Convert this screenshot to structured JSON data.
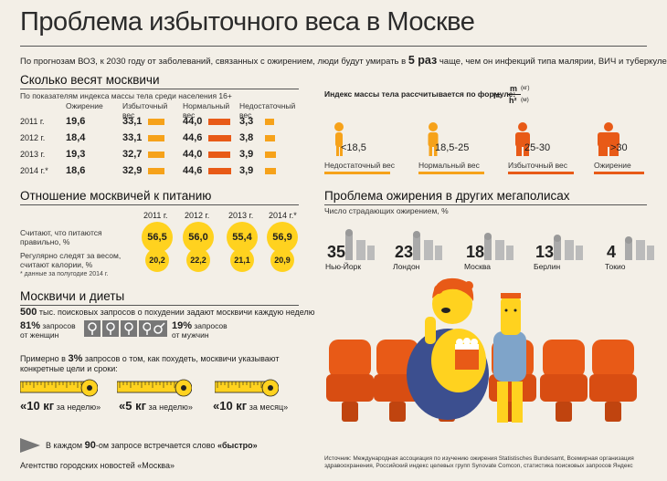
{
  "title": "Проблема избыточного веса в Москве",
  "subtitle_a": "По прогнозам ВОЗ, к 2030 году от заболеваний, связанных с ожирением, люди будут умирать в ",
  "subtitle_b": "5 раз",
  "subtitle_c": " чаще, чем он инфекций типа малярии, ВИЧ и туберкулеза",
  "weigh": {
    "heading": "Сколько весят москвичи",
    "sub": "По показателям индекса массы тела среди населения 16+",
    "cols": [
      "Ожирение",
      "Избыточный вес",
      "Нормальный вес",
      "Недостаточный вес"
    ],
    "rows": [
      {
        "year": "2011 г.",
        "obese": "19,6",
        "over": "33,1",
        "normal": "44,0",
        "under": "3,3",
        "v": [
          19.6,
          33.1,
          44.0,
          3.3
        ]
      },
      {
        "year": "2012 г.",
        "obese": "18,4",
        "over": "33,1",
        "normal": "44,6",
        "under": "3,8",
        "v": [
          18.4,
          33.1,
          44.6,
          3.8
        ]
      },
      {
        "year": "2013 г.",
        "obese": "19,3",
        "over": "32,7",
        "normal": "44,0",
        "under": "3,9",
        "v": [
          19.3,
          32.7,
          44.0,
          3.9
        ]
      },
      {
        "year": "2014 г.*",
        "obese": "18,6",
        "over": "32,9",
        "normal": "44,6",
        "under": "3,9",
        "v": [
          18.6,
          32.9,
          44.6,
          3.9
        ]
      }
    ]
  },
  "food": {
    "heading": "Отношение москвичей к питанию",
    "years": [
      "2011 г.",
      "2012 г.",
      "2013 г.",
      "2014 г.*"
    ],
    "row1_label": "Считают, что питаются правильно, %",
    "row1": [
      "56,5",
      "56,0",
      "55,4",
      "56,9"
    ],
    "row2_label": "Регулярно следят за весом, считают калории, %",
    "row2": [
      "20,2",
      "22,2",
      "21,1",
      "20,9"
    ],
    "note": "* данные за полугодие 2014 г."
  },
  "diets": {
    "heading": "Москвичи и диеты",
    "count": "500",
    "count_text": "тыс. поисковых запросов о похудении задают москвичи каждую неделю",
    "women_pct": "81%",
    "women_text": "запросов от женщин",
    "men_pct": "19%",
    "men_text": "запросов от мужчин",
    "goals_a": "Примерно в ",
    "goals_b": "3%",
    "goals_c": " запросов о том, как похудеть, москвичи указывают конкретные цели и сроки:",
    "g1_big": "«10 кг",
    "g1_small": "за неделю»",
    "g2_big": "«5 кг",
    "g2_small": "за неделю»",
    "g3_big": "«10 кг",
    "g3_small": "за месяц»",
    "fast_a": "В каждом ",
    "fast_b": "90",
    "fast_c": "-ом запросе встречается слово ",
    "fast_d": "«быстро»"
  },
  "bmi": {
    "formula_text": "Индекс массы тела рассчитывается по формуле:",
    "formula_i": "I=",
    "formula_m": "m",
    "formula_kg": "(кг)",
    "formula_h": "h²",
    "formula_mm": "(м)",
    "cats": [
      {
        "range": "<18,5",
        "label": "Недостаточный вес",
        "color": "#f6a21a"
      },
      {
        "range": "18,5-25",
        "label": "Нормальный вес",
        "color": "#f6a21a"
      },
      {
        "range": "25-30",
        "label": "Избыточный вес",
        "color": "#e85a17"
      },
      {
        "range": ">30",
        "label": "Ожирение",
        "color": "#e85a17"
      }
    ]
  },
  "cities": {
    "heading": "Проблема ожирения в других мегаполисах",
    "sub": "Число страдающих ожирением, %",
    "items": [
      {
        "num": "35",
        "name": "Нью-Йорк"
      },
      {
        "num": "23",
        "name": "Лондон"
      },
      {
        "num": "18",
        "name": "Москва"
      },
      {
        "num": "13",
        "name": "Берлин"
      },
      {
        "num": "4",
        "name": "Токио"
      }
    ]
  },
  "source": "Источник: Международная ассоциация по изучению ожирения Statistisches Bundesamt, Всемирная организация здравоохранения, Российский индекс целевых групп Synovate Comcon, статистика поисковых запросов Яндекс",
  "agency": "Агентство городских новостей «Москва»",
  "colors": {
    "accent": "#e85a17",
    "orange": "#f6a21a",
    "yellow": "#ffd21f"
  }
}
